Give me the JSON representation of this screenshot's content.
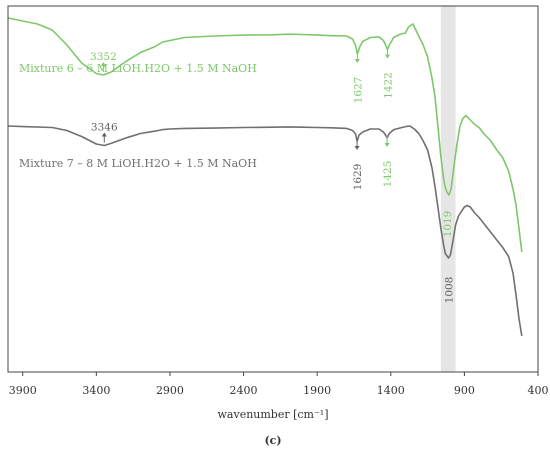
{
  "chart_data": {
    "type": "line",
    "title": "",
    "xlabel": "wavenumber [cm⁻¹]",
    "ylabel": "",
    "xlim": [
      4000,
      400
    ],
    "x_reversed": true,
    "x_ticks": [
      3900,
      3400,
      2900,
      2400,
      1900,
      1400,
      900,
      400
    ],
    "y_ticks_shown": false,
    "grid": false,
    "caption": "(c)",
    "highlight_band": [
      960,
      1060
    ],
    "series": [
      {
        "name": "Mixture 6 – 6 M LiOH.H2O + 1.5 M NaOH",
        "color": "#7dc86a",
        "x": [
          4000,
          3900,
          3800,
          3700,
          3600,
          3500,
          3400,
          3352,
          3300,
          3200,
          3100,
          3000,
          2950,
          2900,
          2800,
          2600,
          2400,
          2200,
          2100,
          2000,
          1900,
          1800,
          1700,
          1660,
          1640,
          1627,
          1610,
          1590,
          1540,
          1480,
          1450,
          1435,
          1422,
          1410,
          1380,
          1340,
          1300,
          1280,
          1250,
          1220,
          1200,
          1180,
          1150,
          1120,
          1100,
          1080,
          1060,
          1040,
          1030,
          1019,
          1005,
          990,
          970,
          950,
          930,
          910,
          890,
          860,
          830,
          800,
          760,
          720,
          680,
          640,
          600,
          570,
          550,
          530,
          510
        ],
        "y": [
          88,
          87,
          86,
          84,
          79,
          73,
          69.5,
          69,
          70,
          73.5,
          76.5,
          78.5,
          80,
          80.5,
          81.5,
          82,
          82.3,
          82.4,
          82.6,
          82.5,
          82.3,
          82.1,
          82,
          81,
          79,
          76,
          78.5,
          80.2,
          81.5,
          81.7,
          80.5,
          79,
          77.5,
          79,
          81.5,
          82.5,
          83,
          85,
          86,
          83,
          81,
          79,
          75,
          68,
          62,
          52,
          42,
          34,
          31.5,
          30,
          29,
          31,
          39,
          46,
          52,
          54.5,
          55.5,
          54,
          52.5,
          51.5,
          49,
          47,
          44,
          41.5,
          37,
          31,
          26,
          18,
          10
        ]
      },
      {
        "name": "Mixture 7 – 8 M LiOH.H2O + 1.5 M NaOH",
        "color": "#707070",
        "x": [
          4000,
          3900,
          3700,
          3600,
          3500,
          3400,
          3346,
          3300,
          3200,
          3100,
          3000,
          2950,
          2900,
          2800,
          2600,
          2400,
          2200,
          2100,
          2000,
          1900,
          1800,
          1700,
          1660,
          1640,
          1629,
          1615,
          1590,
          1540,
          1480,
          1450,
          1435,
          1425,
          1410,
          1380,
          1340,
          1300,
          1270,
          1240,
          1210,
          1180,
          1150,
          1120,
          1100,
          1080,
          1060,
          1040,
          1030,
          1008,
          995,
          980,
          960,
          940,
          920,
          900,
          880,
          860,
          830,
          800,
          760,
          720,
          680,
          640,
          600,
          570,
          550,
          530,
          510
        ],
        "y": [
          52,
          51.8,
          51.5,
          50.5,
          48.5,
          46,
          45.5,
          46.2,
          48,
          49.5,
          50.3,
          50.8,
          51,
          51.2,
          51.3,
          51.5,
          51.6,
          51.7,
          51.6,
          51.5,
          51.4,
          51.2,
          50.5,
          49.5,
          47,
          49,
          50,
          51,
          51,
          50,
          49,
          48,
          49.5,
          50.8,
          51.3,
          51.8,
          52,
          51,
          49.5,
          47,
          44,
          38,
          32,
          25,
          18,
          12,
          9.5,
          8,
          9,
          13,
          19,
          22,
          23.5,
          25,
          25.5,
          25,
          23,
          21.5,
          19,
          16.5,
          14,
          11.5,
          8.5,
          3,
          -4,
          -12,
          -18
        ]
      }
    ],
    "annotations": [
      {
        "text": "3352",
        "x": 3352,
        "color": "#7dc86a",
        "series": 0
      },
      {
        "text": "1627",
        "x": 1627,
        "color": "#7dc86a",
        "series": 0
      },
      {
        "text": "1422",
        "x": 1422,
        "color": "#7dc86a",
        "series": 0
      },
      {
        "text": "1019",
        "x": 1019,
        "color": "#7dc86a",
        "series": 0
      },
      {
        "text": "3346",
        "x": 3346,
        "color": "#606060",
        "series": 1
      },
      {
        "text": "1629",
        "x": 1629,
        "color": "#606060",
        "series": 1
      },
      {
        "text": "1425",
        "x": 1425,
        "color": "#7dc86a",
        "series": 1
      },
      {
        "text": "1008",
        "x": 1008,
        "color": "#606060",
        "series": 1
      }
    ]
  }
}
